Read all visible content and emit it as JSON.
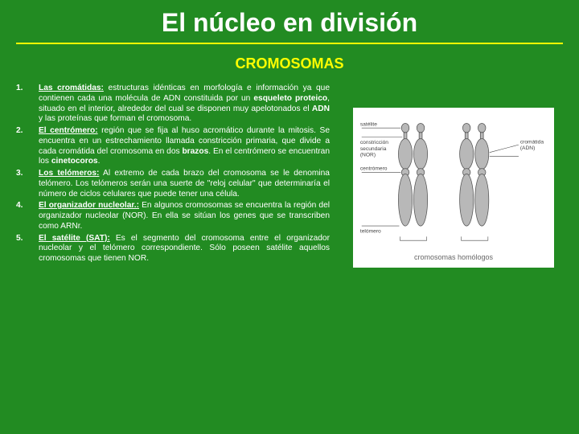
{
  "slide": {
    "background_color": "#228B22",
    "title": {
      "text": "El núcleo en división",
      "color": "#ffffff",
      "fontsize": 32,
      "rule_color": "#ffff00"
    },
    "subtitle": {
      "text": "CROMOSOMAS",
      "color": "#ffff00",
      "fontsize": 18
    },
    "list": {
      "color": "#ffffff",
      "fontsize": 10.2,
      "line_height": 1.25
    },
    "items": [
      {
        "term": "Las cromátidas:",
        "body_html": " estructuras idénticas en morfología e información ya que contienen cada una molécula de ADN constituida por un <span class='b'>esqueleto proteico</span>, situado en el interior, alrededor del cual se disponen muy apelotonados el <span class='b'>ADN</span> y las proteínas que forman el cromosoma."
      },
      {
        "term": "El centrómero:",
        "body_html": " región que se fija al huso acromático durante la mitosis. Se encuentra en un estrechamiento llamada constricción primaria, que divide a cada cromátida del cromosoma en dos <span class='b'>brazos</span>. En el centrómero se encuentran los <span class='b'>cinetocoros</span>."
      },
      {
        "term": "Los telómeros:",
        "body_html": " Al extremo de cada brazo del cromosoma se le denomina telómero. Los telómeros serán una suerte de \"reloj celular\" que determinaría el número de ciclos celulares que puede tener una célula."
      },
      {
        "term": "El organizador nucleolar.:",
        "body_html": " En algunos cromosomas se encuentra la región del organizador nucleolar (NOR). En ella se sitúan los genes que se transcriben como ARNr."
      },
      {
        "term": "El satélite (SAT):",
        "body_html": " Es el segmento del cromosoma entre el organizador nucleolar y el telómero correspondiente. Sólo poseen satélite aquellos cromosomas que tienen NOR."
      }
    ],
    "diagram": {
      "background": "#ffffff",
      "chromatid_fill": "#b8b8b8",
      "chromatid_stroke": "#555555",
      "label_color": "#444444",
      "label_fontsize": 7,
      "labels": {
        "satellite": "satélite",
        "secondary": "constricción secundaria (NOR)",
        "centromere": "centrómero",
        "telomere": "telómero",
        "chromatid": "cromátida",
        "dna": "ADN"
      },
      "caption": "cromosomas homólogos"
    }
  }
}
